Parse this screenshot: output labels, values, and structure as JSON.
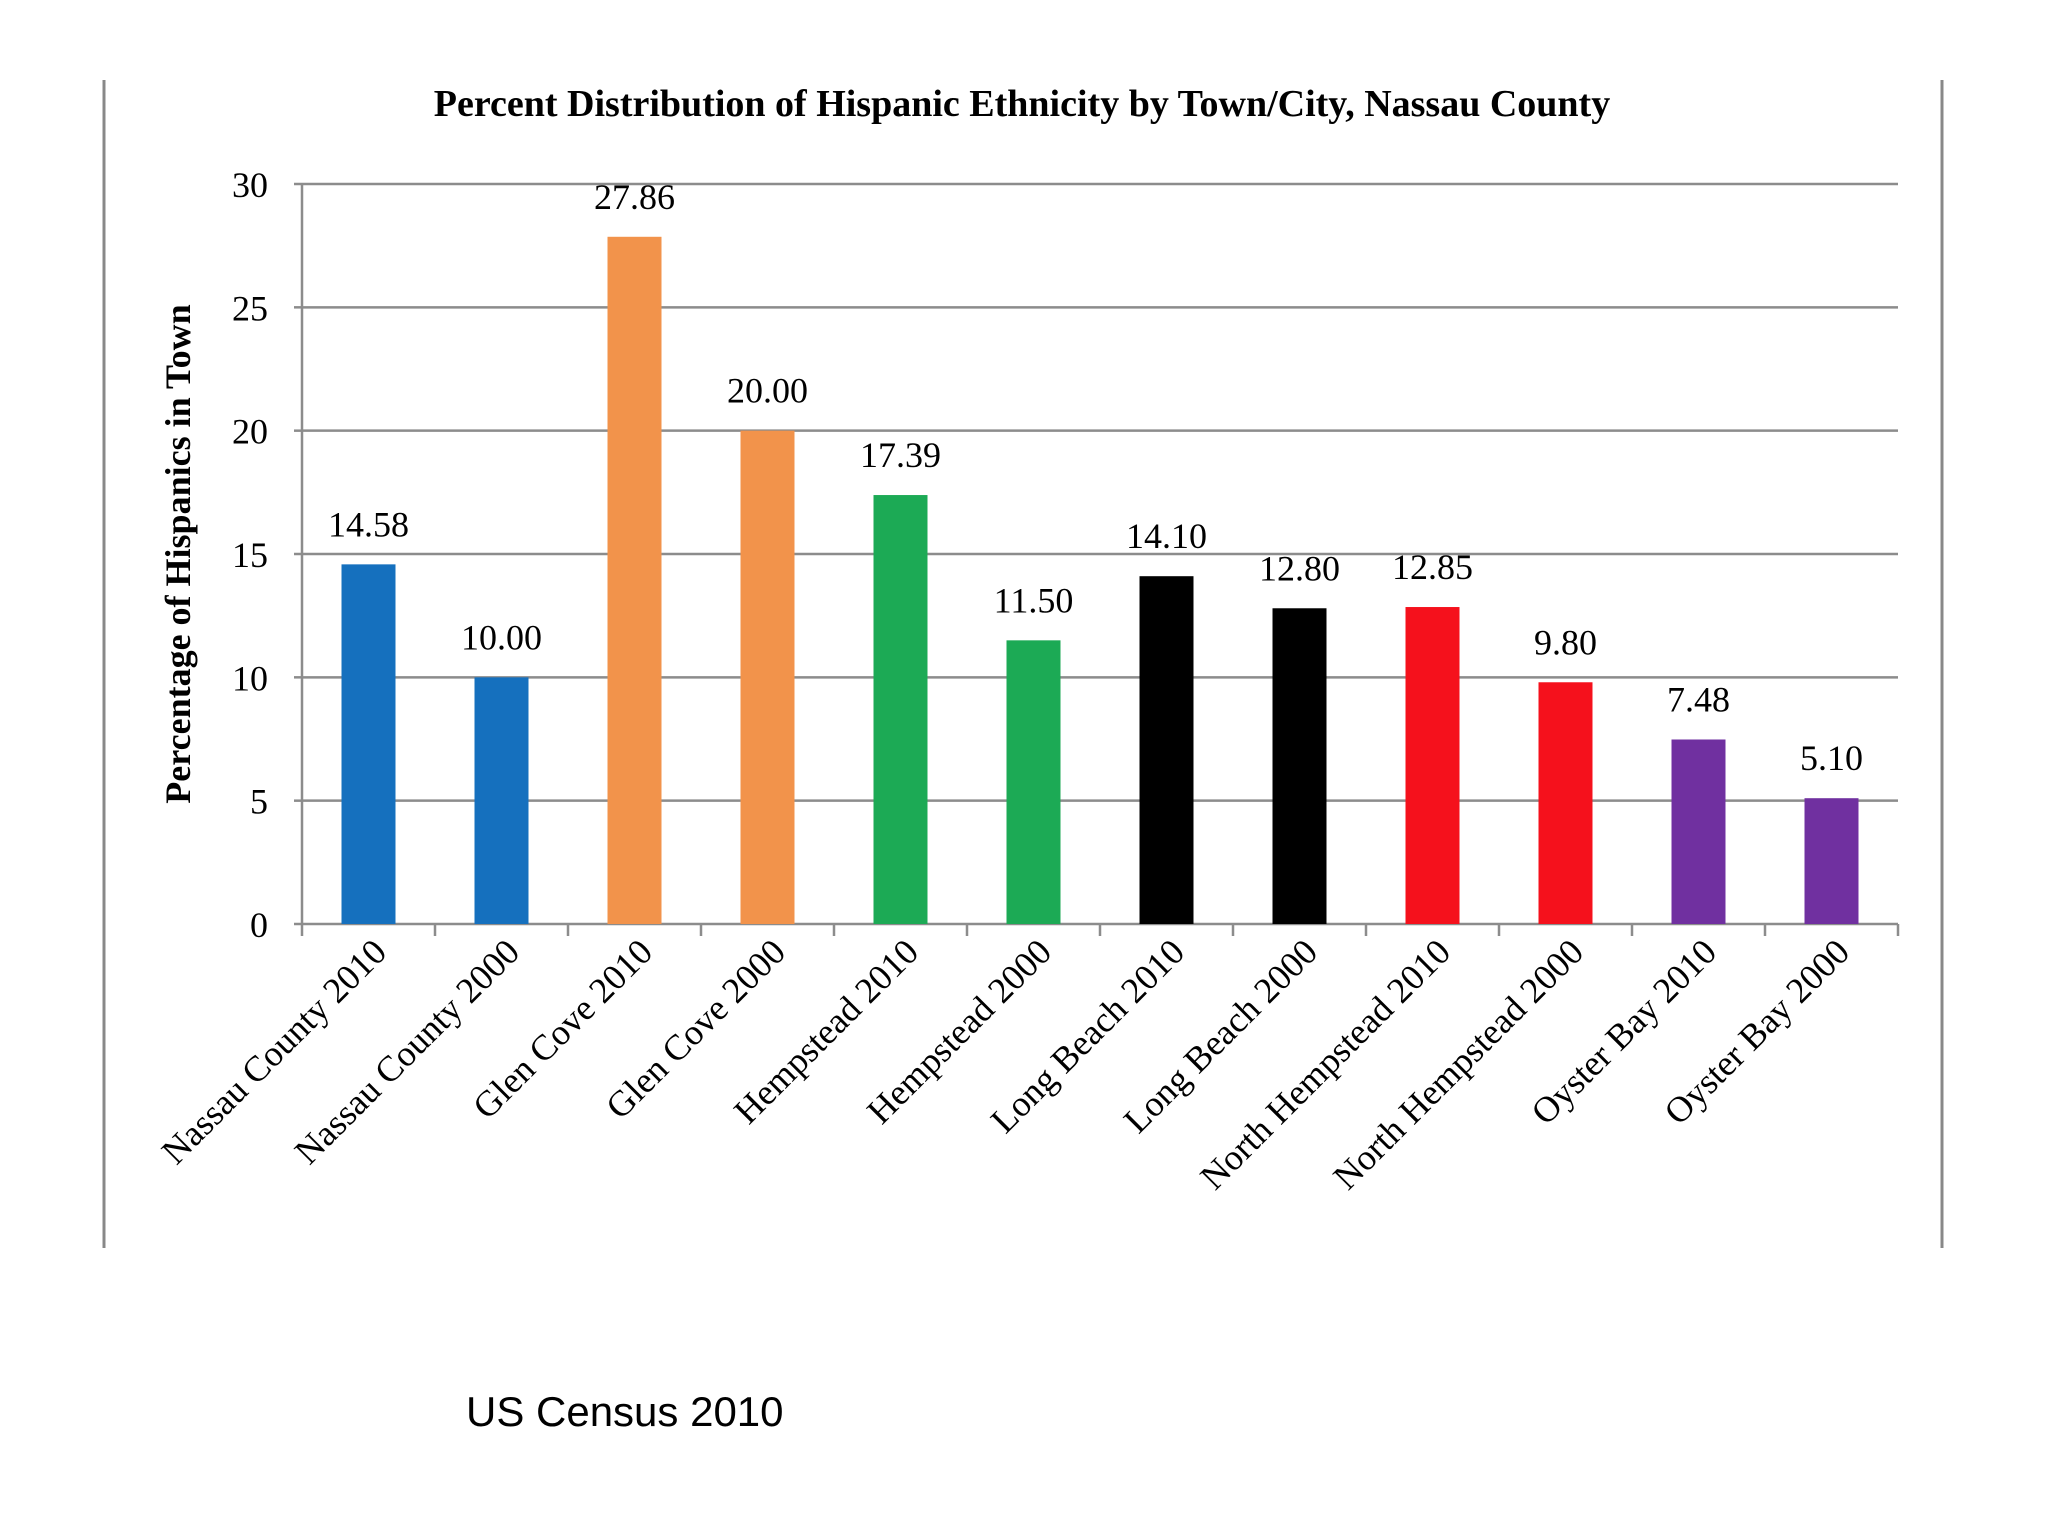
{
  "chart_data": {
    "type": "bar",
    "title": "Percent Distribution of Hispanic Ethnicity by Town/City, Nassau County",
    "xlabel": "",
    "ylabel": "Percentage of Hispanics in Town",
    "ylim": [
      0,
      30
    ],
    "yticks": [
      0,
      5,
      10,
      15,
      20,
      25,
      30
    ],
    "grid": true,
    "categories": [
      "Nassau County 2010",
      "Nassau County 2000",
      "Glen Cove 2010",
      "Glen Cove 2000",
      "Hempstead 2010",
      "Hempstead 2000",
      "Long Beach 2010",
      "Long Beach 2000",
      "North Hempstead 2010",
      "North Hempstead 2000",
      "Oyster Bay 2010",
      "Oyster Bay 2000"
    ],
    "values": [
      14.58,
      10.0,
      27.86,
      20.0,
      17.39,
      11.5,
      14.1,
      12.8,
      12.85,
      9.8,
      7.48,
      5.1
    ],
    "data_labels": [
      "14.58",
      "10.00",
      "27.86",
      "20.00",
      "17.39",
      "11.50",
      "14.10",
      "12.80",
      "12.85",
      "9.80",
      "7.48",
      "5.10"
    ],
    "bar_colors": [
      "#1570BE",
      "#1570BE",
      "#F2934B",
      "#F2934B",
      "#1CAA55",
      "#1CAA55",
      "#000000",
      "#000000",
      "#F5111C",
      "#F5111C",
      "#7030A0",
      "#7030A0"
    ]
  },
  "source": "US Census 2010"
}
